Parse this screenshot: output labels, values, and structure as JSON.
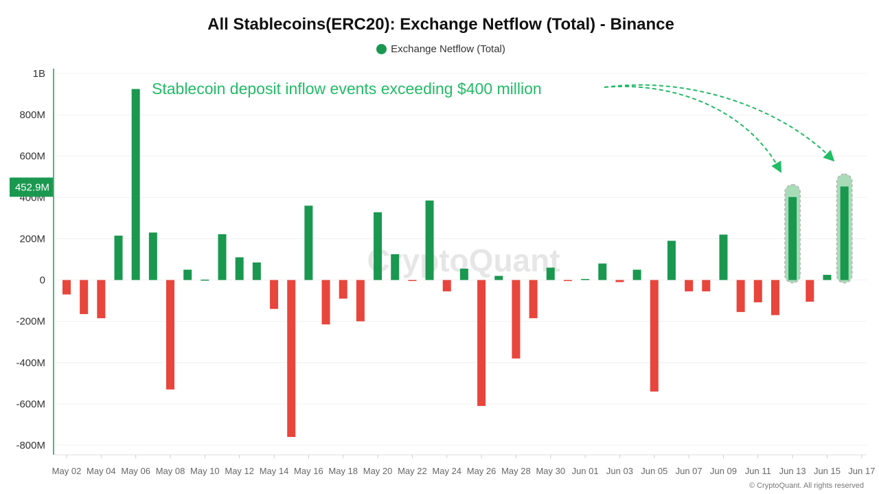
{
  "header": {
    "title": "All Stablecoins(ERC20): Exchange Netflow (Total) - Binance",
    "legend_label": "Exchange Netflow (Total)"
  },
  "footer": {
    "copyright": "© CryptoQuant. All rights reserved"
  },
  "watermark": "CryptoQuant",
  "colors": {
    "positive": "#1a9850",
    "negative": "#e8453c",
    "annotation": "#22bb66",
    "highlight": "#a8dcb8"
  },
  "chart_data": {
    "type": "bar",
    "title": "All Stablecoins(ERC20): Exchange Netflow (Total) - Binance",
    "series_name": "Exchange Netflow (Total)",
    "ylim": [
      -800000000,
      1000000000
    ],
    "yticks": [
      {
        "value": 1000000000,
        "label": "1B"
      },
      {
        "value": 800000000,
        "label": "800M"
      },
      {
        "value": 600000000,
        "label": "600M"
      },
      {
        "value": 400000000,
        "label": "400M"
      },
      {
        "value": 200000000,
        "label": "200M"
      },
      {
        "value": 0,
        "label": "0"
      },
      {
        "value": -200000000,
        "label": "-200M"
      },
      {
        "value": -400000000,
        "label": "-400M"
      },
      {
        "value": -600000000,
        "label": "-600M"
      },
      {
        "value": -800000000,
        "label": "-800M"
      }
    ],
    "xtick_labels": [
      "May 02",
      "May 04",
      "May 06",
      "May 08",
      "May 10",
      "May 12",
      "May 14",
      "May 16",
      "May 18",
      "May 20",
      "May 22",
      "May 24",
      "May 26",
      "May 28",
      "May 30",
      "Jun 01",
      "Jun 03",
      "Jun 05",
      "Jun 07",
      "Jun 09",
      "Jun 11",
      "Jun 13",
      "Jun 15",
      "Jun 17"
    ],
    "categories": [
      "May 02",
      "May 03",
      "May 04",
      "May 05",
      "May 06",
      "May 07",
      "May 08",
      "May 09",
      "May 10",
      "May 11",
      "May 12",
      "May 13",
      "May 14",
      "May 15",
      "May 16",
      "May 17",
      "May 18",
      "May 19",
      "May 20",
      "May 21",
      "May 22",
      "May 23",
      "May 24",
      "May 25",
      "May 26",
      "May 27",
      "May 28",
      "May 29",
      "May 30",
      "May 31",
      "Jun 01",
      "Jun 02",
      "Jun 03",
      "Jun 04",
      "Jun 05",
      "Jun 06",
      "Jun 07",
      "Jun 08",
      "Jun 09",
      "Jun 10",
      "Jun 11",
      "Jun 12",
      "Jun 13",
      "Jun 14",
      "Jun 15",
      "Jun 16"
    ],
    "values": [
      -70000000,
      -165000000,
      -185000000,
      215000000,
      925000000,
      230000000,
      -530000000,
      50000000,
      2000000,
      222000000,
      110000000,
      85000000,
      -140000000,
      -760000000,
      360000000,
      -215000000,
      -90000000,
      -200000000,
      328000000,
      125000000,
      -3000000,
      385000000,
      -55000000,
      55000000,
      -610000000,
      20000000,
      -380000000,
      -185000000,
      60000000,
      -3000000,
      5000000,
      80000000,
      -10000000,
      50000000,
      -540000000,
      190000000,
      -55000000,
      -55000000,
      220000000,
      -155000000,
      -108000000,
      -170000000,
      402000000,
      -105000000,
      25000000,
      452900000
    ],
    "highlighted": [
      "Jun 13",
      "Jun 16"
    ],
    "current_value_label": "452.9M",
    "annotation": "Stablecoin deposit inflow events exceeding $400 million"
  }
}
